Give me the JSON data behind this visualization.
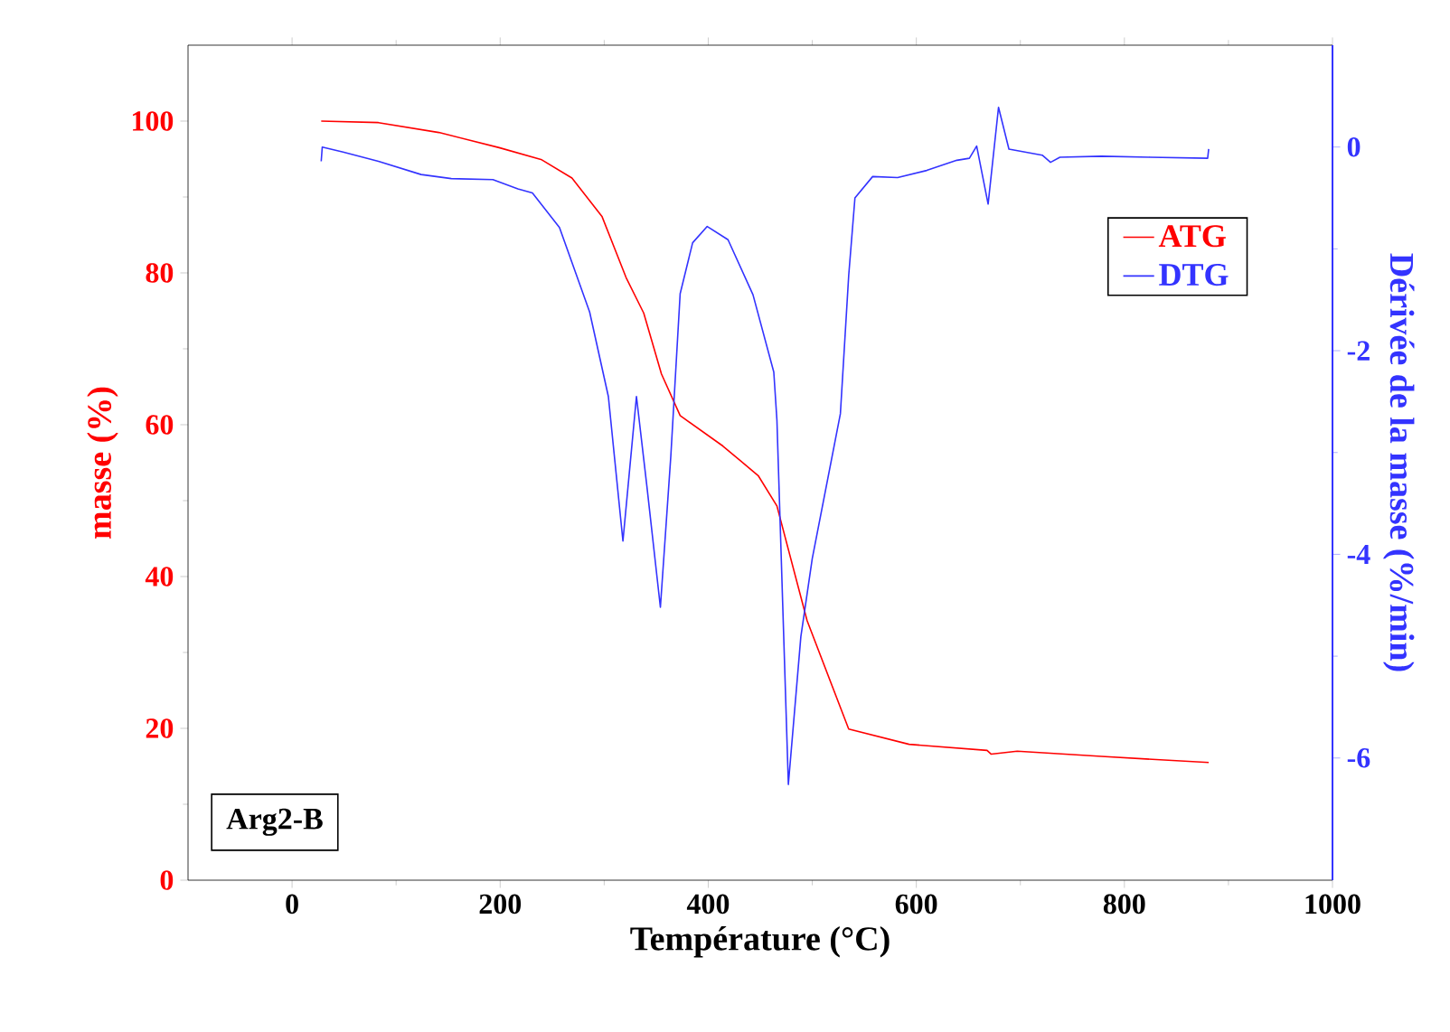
{
  "chart_data": {
    "type": "line",
    "xlabel": "Température (°C)",
    "ylabel": "masse (%)",
    "y2label": "Dérivée de la masse (%/min)",
    "xlim": [
      -100,
      1000
    ],
    "xticks": [
      0,
      200,
      400,
      600,
      800,
      1000
    ],
    "ylim": [
      0,
      110
    ],
    "yticks": [
      0,
      20,
      40,
      60,
      80,
      100
    ],
    "y2lim": [
      -7.2,
      1
    ],
    "y2ticks": [
      -6,
      -4,
      -2,
      0
    ],
    "legend": "top right",
    "annotations": [
      "Arg2-B"
    ],
    "series": [
      {
        "name": "ATG",
        "axis": "y",
        "color": "#ff0000",
        "x": [
          28,
          83,
          141,
          199,
          240,
          269,
          298,
          321,
          338,
          355,
          373,
          414,
          448,
          466,
          495,
          535,
          593,
          668,
          672,
          697,
          778,
          881
        ],
        "values": [
          100,
          99.8,
          98.5,
          96.5,
          94.9,
          92.5,
          87.4,
          79.4,
          74.7,
          66.7,
          61.2,
          57.2,
          53.3,
          49.3,
          34.2,
          19.9,
          17.9,
          17.1,
          16.6,
          17.0,
          16.3,
          15.5
        ]
      },
      {
        "name": "DTG",
        "axis": "y2",
        "color": "#3333ff",
        "x": [
          28,
          29,
          49,
          83,
          124,
          153,
          193,
          217,
          231,
          257,
          286,
          304,
          318,
          331,
          341,
          354,
          364,
          373,
          385,
          399,
          419,
          443,
          463,
          466,
          477,
          489,
          500,
          527,
          535,
          541,
          558,
          582,
          610,
          639,
          651,
          658,
          669,
          679,
          689,
          721,
          729,
          738,
          778,
          825,
          880,
          881
        ],
        "values": [
          -0.14,
          0.0,
          -0.05,
          -0.14,
          -0.27,
          -0.31,
          -0.32,
          -0.41,
          -0.45,
          -0.79,
          -1.62,
          -2.45,
          -3.87,
          -2.45,
          -3.33,
          -4.52,
          -3.04,
          -1.44,
          -0.94,
          -0.78,
          -0.91,
          -1.45,
          -2.21,
          -2.68,
          -6.26,
          -4.81,
          -4.04,
          -2.62,
          -1.26,
          -0.5,
          -0.29,
          -0.3,
          -0.23,
          -0.13,
          -0.11,
          0.01,
          -0.56,
          0.39,
          -0.02,
          -0.08,
          -0.15,
          -0.1,
          -0.09,
          -0.1,
          -0.11,
          -0.02
        ]
      }
    ]
  }
}
